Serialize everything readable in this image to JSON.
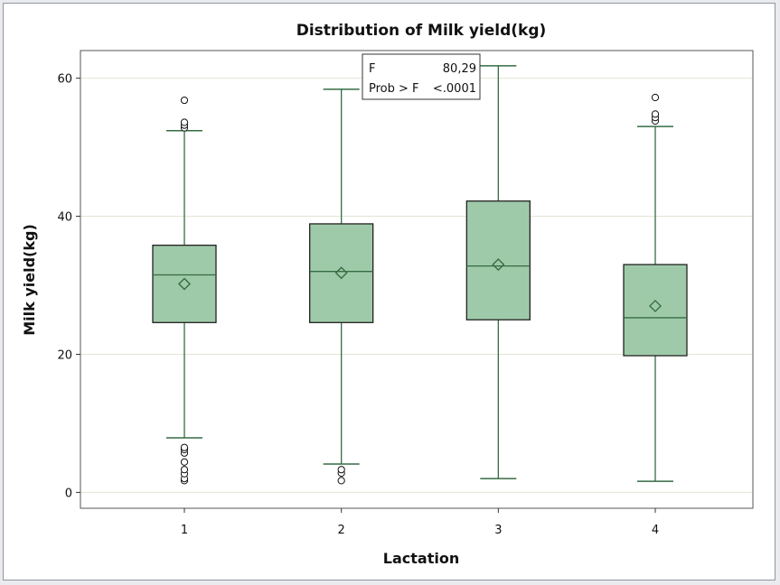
{
  "chart_data": {
    "type": "box",
    "title": "Distribution of Milk yield(kg)",
    "xlabel": "Lactation",
    "ylabel": "Milk yield(kg)",
    "categories": [
      "1",
      "2",
      "3",
      "4"
    ],
    "ylim": [
      -2.3,
      64
    ],
    "yticks": [
      0,
      20,
      40,
      60
    ],
    "grid": true,
    "colors": {
      "box_fill": "#9fcaa9",
      "line": "#356c43",
      "grid": "#dfe6d6"
    },
    "boxes": [
      {
        "category": "1",
        "min": 7.9,
        "q1": 24.6,
        "median": 31.5,
        "q3": 35.8,
        "max": 52.4,
        "mean": 30.2,
        "outliers": [
          1.7,
          2.0,
          2.7,
          3.3,
          4.4,
          5.7,
          6.2,
          6.5,
          52.8,
          53.2,
          53.6,
          56.8
        ]
      },
      {
        "category": "2",
        "min": 4.1,
        "q1": 24.6,
        "median": 32.0,
        "q3": 38.9,
        "max": 58.4,
        "mean": 31.8,
        "outliers": [
          1.7,
          2.8,
          3.3
        ]
      },
      {
        "category": "3",
        "min": 2.0,
        "q1": 25.0,
        "median": 32.8,
        "q3": 42.2,
        "max": 61.8,
        "mean": 33.0,
        "outliers": []
      },
      {
        "category": "4",
        "min": 1.6,
        "q1": 19.8,
        "median": 25.3,
        "q3": 33.0,
        "max": 53.0,
        "mean": 27.0,
        "outliers": [
          53.8,
          54.3,
          54.8,
          57.2
        ]
      }
    ],
    "inset": {
      "rows": [
        {
          "label": "F",
          "value": "80,29"
        },
        {
          "label": "Prob > F",
          "value": "<.0001"
        }
      ]
    }
  }
}
